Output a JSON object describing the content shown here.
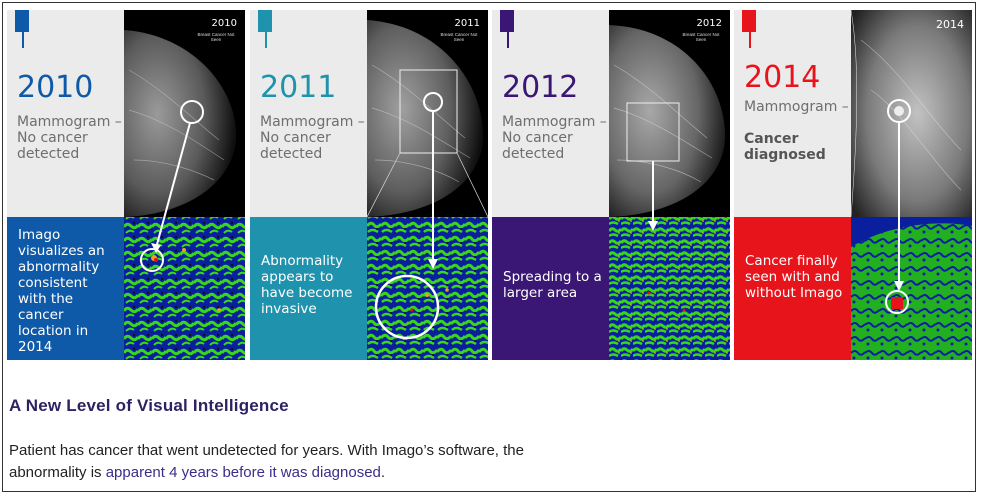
{
  "panels": [
    {
      "year": "2010",
      "color": "#0f5aa8",
      "bottom_color": "#0f5aa8",
      "sub_lines": [
        "Mammogram –",
        "No cancer",
        "detected"
      ],
      "bold": false,
      "img_year": "2010",
      "img_note": "Breast Cancer Not Seen",
      "caption": "Imago visualizes an abnormality consistent with the cancer location in 2014"
    },
    {
      "year": "2011",
      "color": "#1f93ad",
      "bottom_color": "#1f93ad",
      "sub_lines": [
        "Mammogram –",
        "No cancer",
        "detected"
      ],
      "bold": false,
      "img_year": "2011",
      "img_note": "Breast Cancer Not Seen",
      "caption": "Abnormality appears to have become invasive"
    },
    {
      "year": "2012",
      "color": "#3a1774",
      "bottom_color": "#3a1774",
      "sub_lines": [
        "Mammogram –",
        "No cancer",
        "detected"
      ],
      "bold": false,
      "img_year": "2012",
      "img_note": "Breast Cancer Not Seen",
      "caption": "Spreading to a larger area"
    },
    {
      "year": "2014",
      "color": "#e8141b",
      "bottom_color": "#e8141b",
      "sub_lines": [
        "Mammogram –",
        "Cancer",
        "diagnosed"
      ],
      "bold": true,
      "img_year": "2014",
      "img_note": "",
      "caption": "Cancer finally seen with and without Imago"
    }
  ],
  "heading": "A New Level of Visual Intelligence",
  "body": {
    "line1": "Patient has cancer that went undetected for years. With Imago’s software, the",
    "line2_prefix": "abnormality is ",
    "line2_link": "apparent 4 years before it was diagnosed",
    "line2_suffix": "."
  }
}
